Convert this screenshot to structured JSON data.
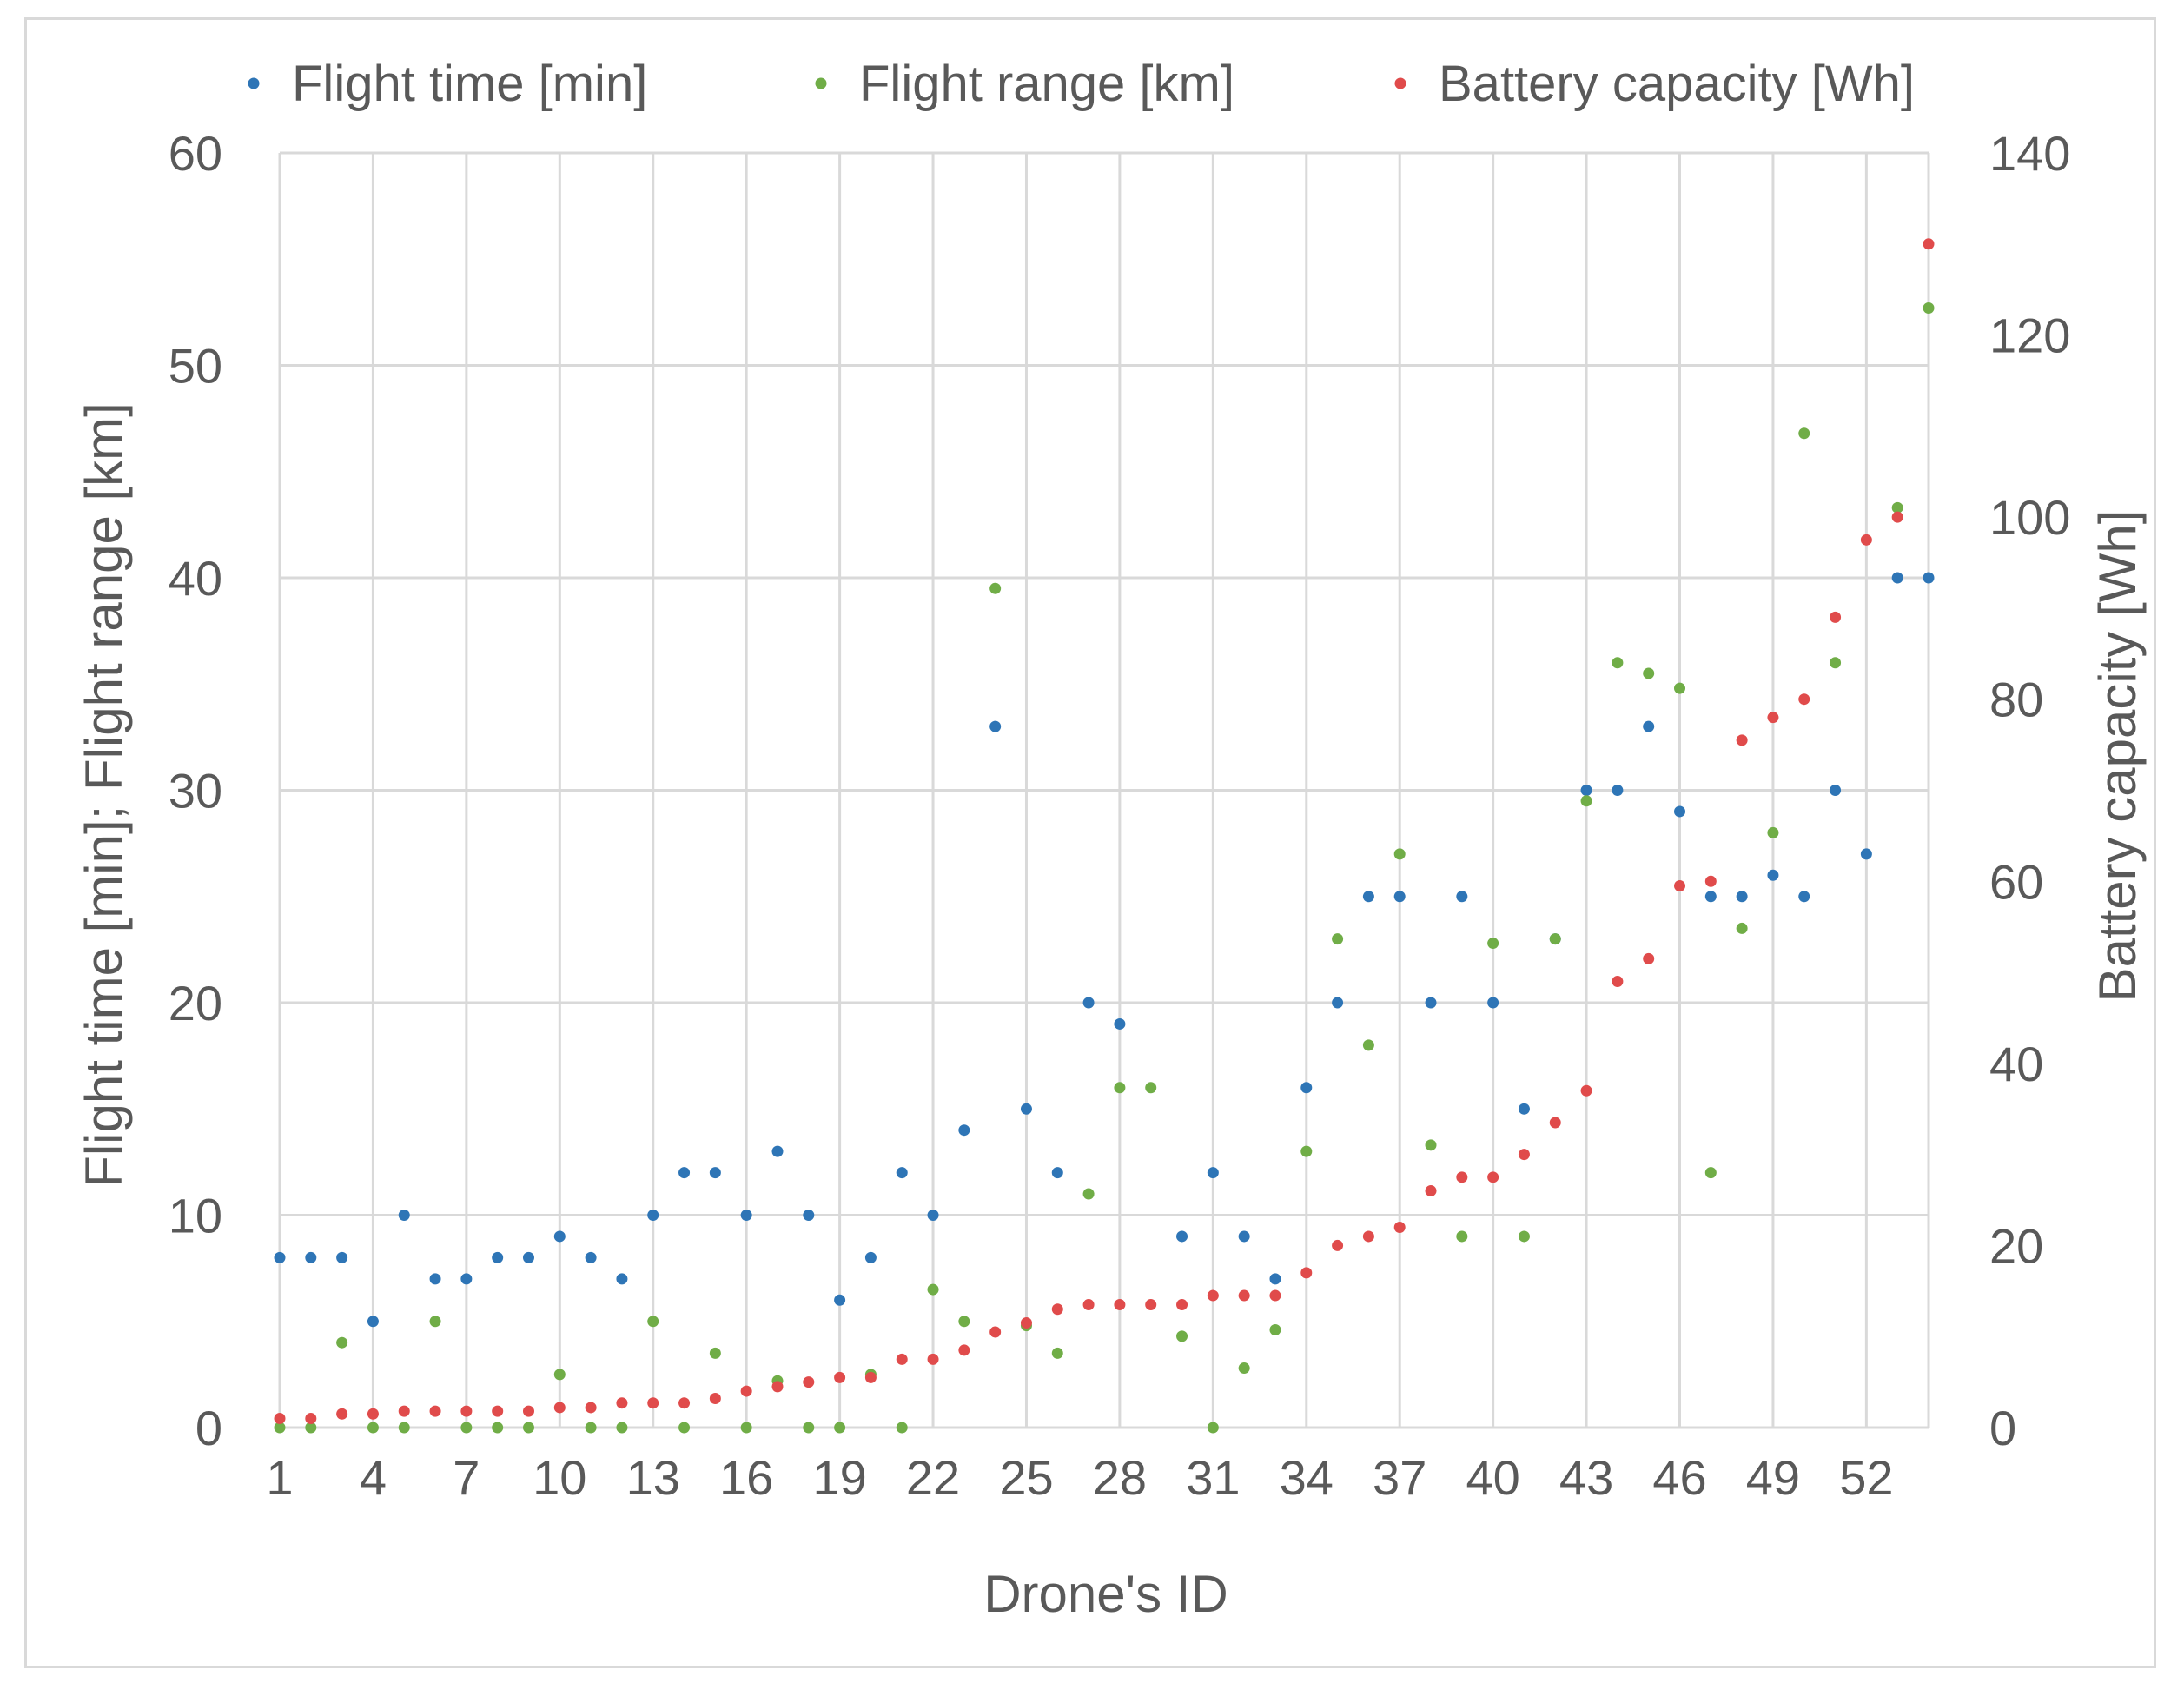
{
  "chart_data": {
    "type": "scatter",
    "title": "",
    "xlabel": "Drone's ID",
    "ylabel": "Flight time [min]; Flight range [km]",
    "y2label": "Battery capacity [Wh]",
    "xlim": [
      1,
      54
    ],
    "ylim": [
      0,
      60
    ],
    "y2lim": [
      0,
      140
    ],
    "x_ticks": [
      "1",
      "4",
      "7",
      "10",
      "13",
      "16",
      "19",
      "22",
      "25",
      "28",
      "31",
      "34",
      "37",
      "40",
      "43",
      "46",
      "49",
      "52"
    ],
    "y_ticks": [
      "0",
      "10",
      "20",
      "30",
      "40",
      "50",
      "60"
    ],
    "y2_ticks": [
      "0",
      "20",
      "40",
      "60",
      "80",
      "100",
      "120",
      "140"
    ],
    "grid": true,
    "legend_position": "top",
    "x": [
      1,
      2,
      3,
      4,
      5,
      6,
      7,
      8,
      9,
      10,
      11,
      12,
      13,
      14,
      15,
      16,
      17,
      18,
      19,
      20,
      21,
      22,
      23,
      24,
      25,
      26,
      27,
      28,
      29,
      30,
      31,
      32,
      33,
      34,
      35,
      36,
      37,
      38,
      39,
      40,
      41,
      42,
      43,
      44,
      45,
      46,
      47,
      48,
      49,
      50,
      51,
      52,
      53,
      54
    ],
    "series": [
      {
        "name": "Flight time [min]",
        "axis": "left",
        "color": "#2e75b6",
        "values": [
          8,
          8,
          8,
          5,
          10,
          7,
          7,
          8,
          8,
          9,
          8,
          7,
          10,
          12,
          12,
          10,
          13,
          10,
          6,
          8,
          12,
          10,
          14,
          33,
          15,
          12,
          20,
          19,
          null,
          9,
          12,
          9,
          7,
          16,
          20,
          25,
          25,
          20,
          25,
          20,
          15,
          23,
          30,
          30,
          33,
          29,
          25,
          25,
          26,
          25,
          30,
          27,
          40,
          40
        ]
      },
      {
        "name": "Flight range [km]",
        "axis": "left",
        "color": "#70ad47",
        "values": [
          0,
          0,
          4,
          0,
          0,
          5,
          0,
          0,
          0,
          2.5,
          0,
          0,
          5,
          0,
          3.5,
          0,
          2.2,
          0,
          0,
          2.5,
          0,
          6.5,
          5,
          39.5,
          4.8,
          3.5,
          11,
          16,
          16,
          4.3,
          0,
          2.8,
          4.6,
          13,
          23,
          18,
          27,
          13.3,
          9,
          22.8,
          9,
          23,
          29.5,
          36,
          35.5,
          34.8,
          12,
          23.5,
          28,
          46.8,
          36,
          null,
          43.3,
          52.7
        ]
      },
      {
        "name": "Battery capacity [Wh]",
        "axis": "right",
        "color": "#e04b4b",
        "values": [
          1,
          1,
          1.5,
          1.5,
          1.8,
          1.8,
          1.8,
          1.8,
          1.8,
          2.2,
          2.2,
          2.7,
          2.7,
          2.7,
          3.2,
          4,
          4.5,
          5,
          5.5,
          5.5,
          7.5,
          7.5,
          8.5,
          10.5,
          11.5,
          13,
          13.5,
          13.5,
          13.5,
          13.5,
          14.5,
          14.5,
          14.5,
          17,
          20,
          21,
          22,
          26,
          27.5,
          27.5,
          30,
          33.5,
          37,
          49,
          51.5,
          59.5,
          60,
          75.5,
          78,
          80,
          89,
          97.5,
          100,
          130
        ]
      }
    ]
  }
}
